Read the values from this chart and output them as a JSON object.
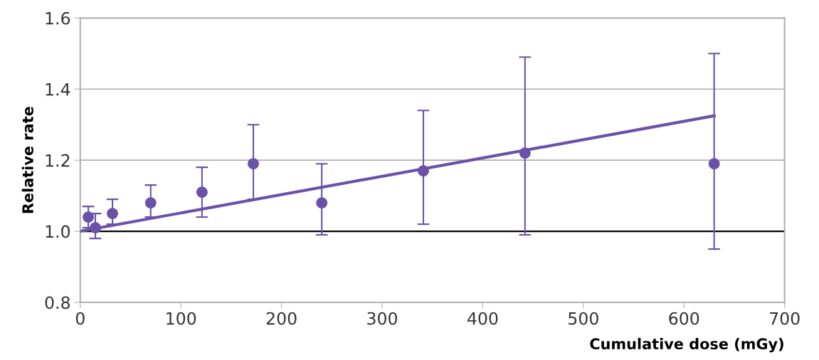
{
  "chart_data": {
    "type": "scatter",
    "xlabel": "Cumulative dose (mGy)",
    "ylabel": "Relative rate",
    "xlim": [
      0,
      700
    ],
    "xticks": [
      0,
      100,
      200,
      300,
      400,
      500,
      600,
      700
    ],
    "ylim": [
      0.8,
      1.6
    ],
    "yticks": [
      {
        "value": 0.8,
        "label": "0.8"
      },
      {
        "value": 1.0,
        "label": "1.0"
      },
      {
        "value": 1.2,
        "label": "1.2"
      },
      {
        "value": 1.4,
        "label": "1.4"
      },
      {
        "value": 1.6,
        "label": "1.6"
      }
    ],
    "grid": "y",
    "ref_lines": [
      {
        "axis": "y",
        "value": 1.0,
        "color": "#000000"
      }
    ],
    "series": [
      {
        "marker": "circle",
        "color": "#6b52a8",
        "x": [
          8,
          15,
          32,
          70,
          121,
          172,
          240,
          341,
          442,
          630
        ],
        "values": [
          1.04,
          1.01,
          1.05,
          1.08,
          1.11,
          1.19,
          1.08,
          1.17,
          1.22,
          1.19
        ],
        "errors": [
          [
            1.01,
            1.07
          ],
          [
            0.98,
            1.05
          ],
          [
            1.02,
            1.09
          ],
          [
            1.04,
            1.13
          ],
          [
            1.04,
            1.18
          ],
          [
            1.09,
            1.3
          ],
          [
            0.99,
            1.19
          ],
          [
            1.02,
            1.34
          ],
          [
            0.99,
            1.49
          ],
          [
            0.95,
            1.5
          ]
        ]
      },
      {
        "type": "line",
        "color": "#6b52a8",
        "x": [
          0,
          630
        ],
        "values": [
          1.0,
          1.325
        ]
      }
    ]
  }
}
